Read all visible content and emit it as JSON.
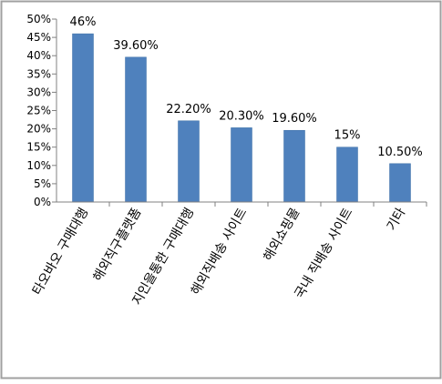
{
  "chart_data": {
    "type": "bar",
    "categories": [
      "타오바오 구매대행",
      "해외직구플랫폼",
      "지인을통한 구매대행",
      "해외직배송 사이트",
      "해외쇼핑몰",
      "국내 직배송 사이트",
      "기타"
    ],
    "values": [
      46,
      39.6,
      22.2,
      20.3,
      19.6,
      15,
      10.5
    ],
    "value_labels": [
      "46%",
      "39.60%",
      "22.20%",
      "20.30%",
      "19.60%",
      "15%",
      "10.50%"
    ],
    "y_ticks": [
      "0%",
      "5%",
      "10%",
      "15%",
      "20%",
      "25%",
      "30%",
      "35%",
      "40%",
      "45%",
      "50%"
    ],
    "ylim": [
      0,
      50
    ],
    "grid": false,
    "title": "",
    "xlabel": "",
    "ylabel": "",
    "colors": {
      "bar": "#4F81BD",
      "bar_edge": "#3A6EA5",
      "axis": "#808080",
      "border": "#A0A0A0"
    }
  }
}
